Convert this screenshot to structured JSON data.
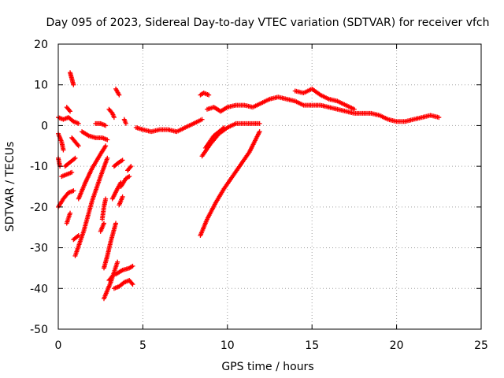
{
  "chart_data": {
    "type": "scatter",
    "title": "Day 095 of 2023, Sidereal Day-to-day VTEC variation (SDTVAR) for receiver vfch",
    "xlabel": "GPS time / hours",
    "ylabel": "SDTVAR / TECUs",
    "xlim": [
      0,
      25
    ],
    "ylim": [
      -50,
      20
    ],
    "xticks": [
      "0",
      "5",
      "10",
      "15",
      "20",
      "25"
    ],
    "yticks": [
      "20",
      "10",
      "0",
      "-10",
      "-20",
      "-30",
      "-40",
      "-50"
    ],
    "xtick_values": [
      0,
      5,
      10,
      15,
      20,
      25
    ],
    "ytick_values": [
      20,
      10,
      0,
      -10,
      -20,
      -30,
      -40,
      -50
    ],
    "grid": true,
    "marker": "plus",
    "color": "#ff0000",
    "series": [
      {
        "name": "main",
        "segments": [
          [
            [
              4.6,
              -0.5
            ],
            [
              5.0,
              -1.0
            ],
            [
              5.5,
              -1.5
            ],
            [
              6.0,
              -1.0
            ],
            [
              6.5,
              -1.0
            ],
            [
              7.0,
              -1.5
            ],
            [
              7.5,
              -0.5
            ],
            [
              8.0,
              0.5
            ],
            [
              8.5,
              1.5
            ]
          ],
          [
            [
              8.8,
              4.0
            ],
            [
              9.2,
              4.5
            ],
            [
              9.6,
              3.5
            ],
            [
              10.0,
              4.5
            ],
            [
              10.5,
              5.0
            ],
            [
              11.0,
              5.0
            ],
            [
              11.5,
              4.5
            ],
            [
              12.0,
              5.5
            ],
            [
              12.5,
              6.5
            ],
            [
              13.0,
              7.0
            ],
            [
              13.5,
              6.5
            ],
            [
              14.0,
              6.0
            ],
            [
              14.5,
              5.0
            ],
            [
              15.0,
              5.0
            ],
            [
              15.5,
              5.0
            ],
            [
              16.0,
              4.5
            ],
            [
              16.5,
              4.0
            ],
            [
              17.0,
              3.5
            ],
            [
              17.5,
              3.0
            ],
            [
              18.0,
              3.0
            ],
            [
              18.5,
              3.0
            ],
            [
              19.0,
              2.5
            ],
            [
              19.5,
              1.5
            ],
            [
              20.0,
              1.0
            ],
            [
              20.5,
              1.0
            ],
            [
              21.0,
              1.5
            ],
            [
              21.5,
              2.0
            ],
            [
              22.0,
              2.5
            ],
            [
              22.5,
              2.0
            ]
          ],
          [
            [
              8.4,
              7.5
            ],
            [
              8.6,
              8.0
            ],
            [
              8.9,
              7.5
            ]
          ],
          [
            [
              14.0,
              8.5
            ],
            [
              14.5,
              8.0
            ],
            [
              15.0,
              9.0
            ],
            [
              15.5,
              7.5
            ],
            [
              16.0,
              6.5
            ],
            [
              16.5,
              6.0
            ],
            [
              17.0,
              5.0
            ],
            [
              17.5,
              4.0
            ]
          ],
          [
            [
              8.5,
              -7.5
            ],
            [
              9.0,
              -4.5
            ],
            [
              9.5,
              -2.0
            ],
            [
              10.0,
              -0.5
            ],
            [
              10.5,
              0.5
            ],
            [
              11.0,
              0.5
            ],
            [
              11.5,
              0.5
            ],
            [
              11.9,
              0.5
            ]
          ],
          [
            [
              8.7,
              -5.5
            ],
            [
              9.2,
              -2.5
            ],
            [
              9.8,
              -0.5
            ]
          ],
          [
            [
              8.4,
              -27.0
            ],
            [
              8.8,
              -23.0
            ],
            [
              9.3,
              -19.0
            ],
            [
              9.8,
              -15.5
            ],
            [
              10.3,
              -12.5
            ],
            [
              10.8,
              -9.5
            ],
            [
              11.3,
              -6.5
            ],
            [
              11.6,
              -4.0
            ],
            [
              11.9,
              -1.5
            ]
          ],
          [
            [
              0.7,
              13.0
            ],
            [
              0.8,
              11.5
            ],
            [
              0.9,
              10.0
            ]
          ],
          [
            [
              0.0,
              2.0
            ],
            [
              0.3,
              1.5
            ],
            [
              0.6,
              2.0
            ],
            [
              0.9,
              1.0
            ],
            [
              1.2,
              0.5
            ]
          ],
          [
            [
              0.5,
              4.5
            ],
            [
              0.7,
              3.5
            ]
          ],
          [
            [
              1.4,
              -1.5
            ],
            [
              1.8,
              -2.5
            ],
            [
              2.2,
              -3.0
            ],
            [
              2.6,
              -3.0
            ],
            [
              2.9,
              -3.5
            ]
          ],
          [
            [
              2.2,
              0.5
            ],
            [
              2.5,
              0.5
            ],
            [
              2.8,
              0.0
            ]
          ],
          [
            [
              3.0,
              4.0
            ],
            [
              3.2,
              3.0
            ],
            [
              3.3,
              2.0
            ]
          ],
          [
            [
              3.4,
              9.0
            ],
            [
              3.6,
              7.5
            ]
          ],
          [
            [
              3.9,
              1.5
            ],
            [
              4.0,
              0.5
            ]
          ],
          [
            [
              0.0,
              -2.0
            ],
            [
              0.2,
              -4.0
            ],
            [
              0.3,
              -6.0
            ]
          ],
          [
            [
              0.0,
              -8.0
            ],
            [
              0.1,
              -10.0
            ]
          ],
          [
            [
              0.4,
              -10.0
            ],
            [
              0.7,
              -9.0
            ],
            [
              1.0,
              -8.0
            ]
          ],
          [
            [
              0.8,
              -3.0
            ],
            [
              1.0,
              -4.0
            ],
            [
              1.2,
              -5.0
            ]
          ],
          [
            [
              0.2,
              -12.5
            ],
            [
              0.5,
              -12.0
            ],
            [
              0.8,
              -11.5
            ]
          ],
          [
            [
              0.0,
              -20.0
            ],
            [
              0.3,
              -18.0
            ],
            [
              0.6,
              -16.5
            ],
            [
              0.9,
              -16.0
            ]
          ],
          [
            [
              0.5,
              -24.0
            ],
            [
              0.7,
              -21.5
            ]
          ],
          [
            [
              0.9,
              -28.0
            ],
            [
              1.2,
              -27.0
            ]
          ],
          [
            [
              1.0,
              -32.0
            ],
            [
              1.5,
              -26.0
            ],
            [
              2.0,
              -18.5
            ],
            [
              2.5,
              -12.5
            ],
            [
              2.9,
              -8.0
            ]
          ],
          [
            [
              1.2,
              -18.0
            ],
            [
              1.6,
              -14.0
            ],
            [
              2.0,
              -10.5
            ],
            [
              2.5,
              -7.0
            ],
            [
              2.8,
              -5.0
            ]
          ],
          [
            [
              2.6,
              -23.0
            ],
            [
              2.7,
              -20.0
            ],
            [
              2.8,
              -18.0
            ]
          ],
          [
            [
              2.5,
              -26.0
            ],
            [
              2.7,
              -24.0
            ]
          ],
          [
            [
              2.7,
              -35.0
            ],
            [
              2.9,
              -32.0
            ],
            [
              3.1,
              -28.5
            ],
            [
              3.4,
              -24.0
            ]
          ],
          [
            [
              3.2,
              -18.0
            ],
            [
              3.5,
              -15.5
            ],
            [
              3.7,
              -14.0
            ]
          ],
          [
            [
              3.3,
              -10.0
            ],
            [
              3.6,
              -9.0
            ],
            [
              3.8,
              -8.5
            ]
          ],
          [
            [
              3.6,
              -19.5
            ],
            [
              3.8,
              -17.5
            ]
          ],
          [
            [
              3.7,
              -15.0
            ],
            [
              4.0,
              -13.0
            ],
            [
              4.2,
              -12.5
            ]
          ],
          [
            [
              4.1,
              -11.0
            ],
            [
              4.3,
              -10.0
            ]
          ],
          [
            [
              2.7,
              -42.5
            ],
            [
              2.9,
              -40.5
            ],
            [
              3.1,
              -38.5
            ],
            [
              3.3,
              -36.0
            ],
            [
              3.5,
              -33.5
            ]
          ],
          [
            [
              3.0,
              -38.0
            ],
            [
              3.2,
              -37.0
            ]
          ],
          [
            [
              3.3,
              -40.0
            ],
            [
              3.6,
              -39.5
            ],
            [
              3.9,
              -38.5
            ],
            [
              4.2,
              -38.0
            ],
            [
              4.4,
              -39.0
            ]
          ],
          [
            [
              3.4,
              -36.5
            ],
            [
              3.8,
              -35.5
            ],
            [
              4.2,
              -35.0
            ],
            [
              4.4,
              -34.5
            ]
          ]
        ]
      }
    ]
  }
}
